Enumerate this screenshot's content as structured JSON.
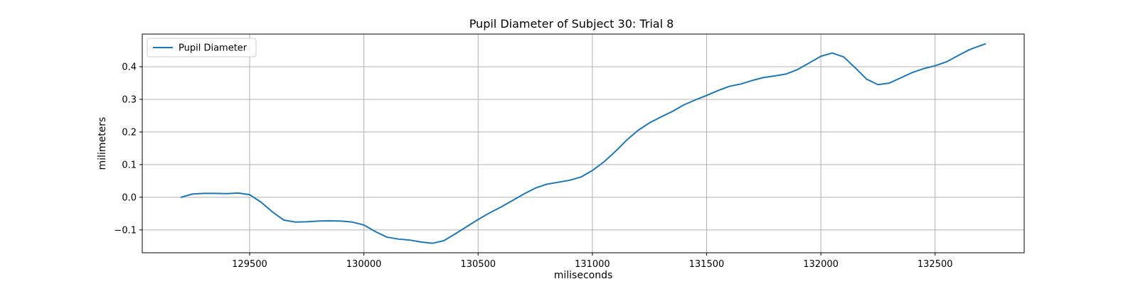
{
  "chart_data": {
    "type": "line",
    "title": "Pupil Diameter of Subject 30: Trial 8",
    "xlabel": "miliseconds",
    "ylabel": "milimeters",
    "xlim": [
      129030,
      132890
    ],
    "ylim": [
      -0.17,
      0.5
    ],
    "xticks": [
      129500,
      130000,
      130500,
      131000,
      131500,
      132000,
      132500
    ],
    "yticks": [
      -0.1,
      0.0,
      0.1,
      0.2,
      0.3,
      0.4
    ],
    "ytick_labels": [
      "−0.1",
      "0.0",
      "0.1",
      "0.2",
      "0.3",
      "0.4"
    ],
    "grid": true,
    "legend_position": "upper-left",
    "series": [
      {
        "name": "Pupil Diameter",
        "color": "#1f77b4",
        "x": [
          129200,
          129250,
          129300,
          129350,
          129400,
          129450,
          129500,
          129550,
          129600,
          129650,
          129700,
          129750,
          129800,
          129850,
          129900,
          129950,
          130000,
          130050,
          130100,
          130150,
          130200,
          130250,
          130300,
          130350,
          130400,
          130450,
          130500,
          130550,
          130600,
          130650,
          130700,
          130750,
          130800,
          130850,
          130900,
          130950,
          131000,
          131050,
          131100,
          131150,
          131200,
          131250,
          131300,
          131350,
          131400,
          131450,
          131500,
          131550,
          131600,
          131650,
          131700,
          131750,
          131800,
          131850,
          131900,
          131950,
          132000,
          132050,
          132100,
          132150,
          132200,
          132250,
          132300,
          132350,
          132400,
          132450,
          132500,
          132550,
          132600,
          132650,
          132700,
          132720
        ],
        "y": [
          0.0,
          0.01,
          0.012,
          0.012,
          0.011,
          0.013,
          0.008,
          -0.015,
          -0.045,
          -0.07,
          -0.076,
          -0.075,
          -0.073,
          -0.072,
          -0.073,
          -0.076,
          -0.085,
          -0.105,
          -0.122,
          -0.128,
          -0.131,
          -0.137,
          -0.141,
          -0.133,
          -0.112,
          -0.09,
          -0.068,
          -0.048,
          -0.03,
          -0.01,
          0.01,
          0.028,
          0.04,
          0.046,
          0.052,
          0.062,
          0.082,
          0.108,
          0.14,
          0.175,
          0.205,
          0.228,
          0.246,
          0.263,
          0.283,
          0.298,
          0.312,
          0.327,
          0.34,
          0.347,
          0.358,
          0.367,
          0.372,
          0.378,
          0.392,
          0.412,
          0.432,
          0.442,
          0.43,
          0.397,
          0.362,
          0.345,
          0.35,
          0.366,
          0.382,
          0.394,
          0.403,
          0.415,
          0.434,
          0.452,
          0.465,
          0.47
        ]
      }
    ]
  }
}
